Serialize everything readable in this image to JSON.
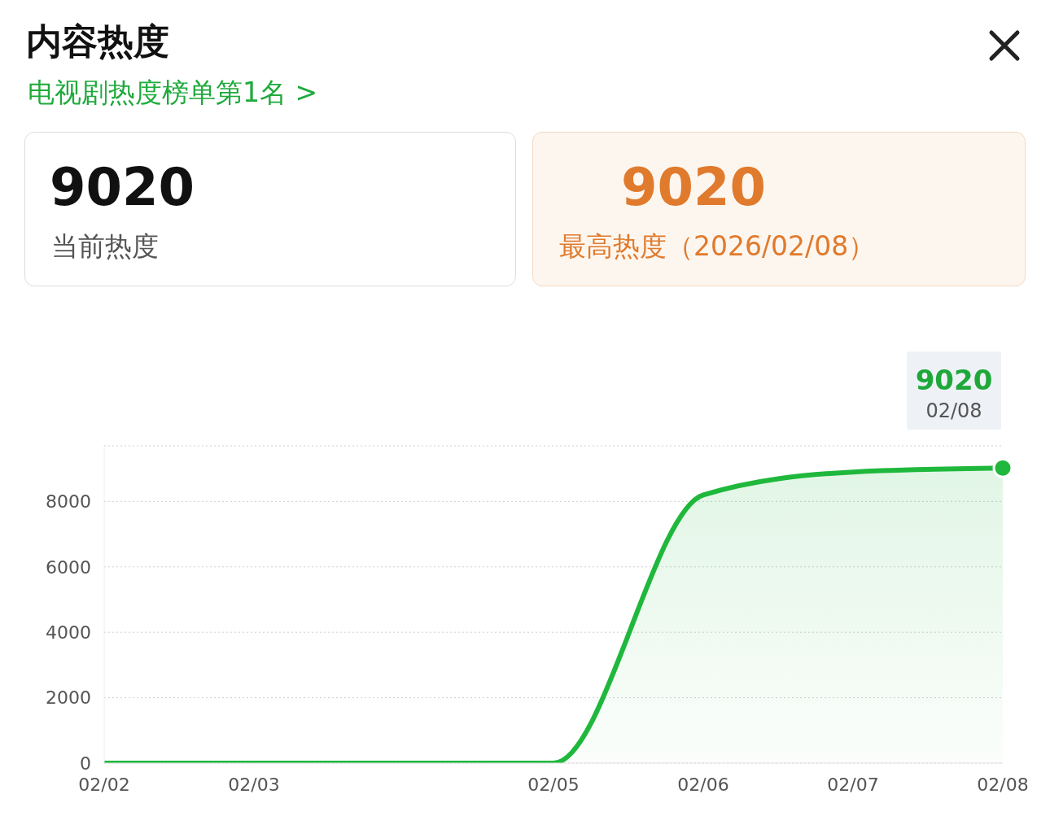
{
  "chart_data": {
    "type": "area",
    "title": "内容热度",
    "subtitle": "电视剧热度榜单第1名 >",
    "categories": [
      "02/02",
      "02/03",
      null,
      "02/05",
      "02/06",
      "02/07",
      "02/08"
    ],
    "values": [
      0,
      0,
      0,
      0,
      8200,
      8900,
      9020
    ],
    "color": "#1fb83c",
    "ylim": [
      0,
      9700
    ],
    "yticks": [
      0,
      2000,
      4000,
      6000,
      8000
    ],
    "grid": "y",
    "marker": "none",
    "line_style": "solid",
    "legend": false,
    "annotations": [
      "9020",
      "当前热度",
      "9020",
      "最高热度（2026/02/08）",
      {
        "text": "9020",
        "x": "02/08",
        "y": 9020
      },
      {
        "text": "02/08",
        "x": "02/08",
        "y": 9020
      }
    ]
  }
}
